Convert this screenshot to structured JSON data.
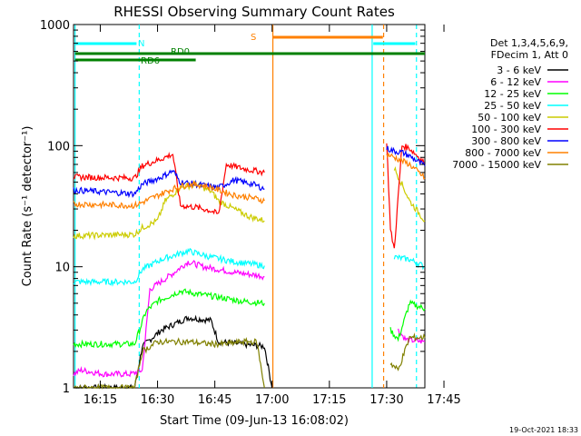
{
  "chart_data": {
    "type": "line",
    "title": "RHESSI Observing Summary Count Rates",
    "xlabel": "Start Time (09-Jun-13 16:08:02)",
    "ylabel": "Count Rate (s⁻¹ detector⁻¹)",
    "y_scale": "log",
    "ylim": [
      1,
      1000
    ],
    "xlim_minutes": [
      8,
      100
    ],
    "x_ticks": [
      "16:15",
      "16:30",
      "16:45",
      "17:00",
      "17:15",
      "17:30",
      "17:45"
    ],
    "y_ticks": [
      "1",
      "10",
      "100",
      "1000"
    ],
    "legend_header": [
      "Det 1,3,4,5,6,9,",
      "FDecim 1, Att 0"
    ],
    "series": [
      {
        "name": "3 - 6 keV",
        "color": "#000000",
        "segments": [
          [
            [
              8,
              1
            ],
            [
              24,
              1
            ],
            [
              26,
              2.2
            ],
            [
              31,
              3.0
            ],
            [
              38,
              3.8
            ],
            [
              44,
              3.6
            ],
            [
              46,
              2.4
            ],
            [
              58,
              2.2
            ],
            [
              60,
              1
            ]
          ]
        ]
      },
      {
        "name": "6 - 12 keV",
        "color": "#ff00ff",
        "segments": [
          [
            [
              8,
              1.3
            ],
            [
              10,
              1.4
            ],
            [
              16,
              1.3
            ],
            [
              23,
              1.3
            ],
            [
              26,
              1.4
            ],
            [
              28,
              6.5
            ],
            [
              34,
              8.8
            ],
            [
              38,
              11
            ],
            [
              42,
              10
            ],
            [
              46,
              9.5
            ],
            [
              50,
              9.0
            ],
            [
              56,
              8.5
            ],
            [
              58,
              8.3
            ]
          ],
          [
            [
              93,
              3.0
            ],
            [
              95,
              2.5
            ],
            [
              100,
              2.4
            ]
          ]
        ]
      },
      {
        "name": "12 - 25 keV",
        "color": "#00ff00",
        "segments": [
          [
            [
              8,
              2.3
            ],
            [
              24,
              2.3
            ],
            [
              27,
              4.3
            ],
            [
              30,
              5.2
            ],
            [
              36,
              6.3
            ],
            [
              40,
              6.0
            ],
            [
              46,
              5.6
            ],
            [
              52,
              5.2
            ],
            [
              58,
              5.0
            ]
          ],
          [
            [
              91,
              3.0
            ],
            [
              93,
              2.5
            ],
            [
              96,
              5.0
            ],
            [
              100,
              4.5
            ]
          ]
        ]
      },
      {
        "name": "25 - 50 keV",
        "color": "#00ffff",
        "segments": [
          [
            [
              8,
              7.5
            ],
            [
              24,
              7.5
            ],
            [
              26,
              9.5
            ],
            [
              31,
              11.5
            ],
            [
              38,
              13.5
            ],
            [
              44,
              12
            ],
            [
              50,
              11
            ],
            [
              58,
              10.2
            ]
          ],
          [
            [
              92,
              12
            ],
            [
              96,
              11.5
            ],
            [
              100,
              10
            ]
          ]
        ]
      },
      {
        "name": "50 - 100 keV",
        "color": "#cccc00",
        "segments": [
          [
            [
              8,
              18
            ],
            [
              24,
              18.5
            ],
            [
              26,
              21
            ],
            [
              30,
              24
            ],
            [
              32,
              35
            ],
            [
              36,
              45
            ],
            [
              40,
              48
            ],
            [
              44,
              42
            ],
            [
              46,
              35
            ],
            [
              50,
              30
            ],
            [
              54,
              26
            ],
            [
              58,
              24
            ]
          ],
          [
            [
              92,
              65
            ],
            [
              94,
              48
            ],
            [
              96,
              35
            ],
            [
              100,
              24
            ]
          ]
        ]
      },
      {
        "name": "100 - 300 keV",
        "color": "#ff0000",
        "segments": [
          [
            [
              8,
              55
            ],
            [
              24,
              54
            ],
            [
              26,
              68
            ],
            [
              31,
              78
            ],
            [
              34,
              85
            ],
            [
              36,
              32
            ],
            [
              40,
              31
            ],
            [
              44,
              29
            ],
            [
              46,
              27
            ],
            [
              48,
              70
            ],
            [
              52,
              65
            ],
            [
              58,
              60
            ]
          ],
          [
            [
              90,
              110
            ],
            [
              91,
              20
            ],
            [
              92,
              14
            ],
            [
              94,
              100
            ],
            [
              96,
              95
            ],
            [
              100,
              72
            ]
          ]
        ]
      },
      {
        "name": "300 - 800 keV",
        "color": "#0000ff",
        "segments": [
          [
            [
              8,
              43
            ],
            [
              24,
              40
            ],
            [
              26,
              48
            ],
            [
              31,
              55
            ],
            [
              34,
              62
            ],
            [
              36,
              50
            ],
            [
              40,
              48
            ],
            [
              44,
              46
            ],
            [
              46,
              45
            ],
            [
              50,
              52
            ],
            [
              55,
              48
            ],
            [
              58,
              44
            ]
          ],
          [
            [
              90,
              95
            ],
            [
              92,
              90
            ],
            [
              94,
              88
            ],
            [
              96,
              82
            ],
            [
              100,
              68
            ]
          ]
        ]
      },
      {
        "name": "800 - 7000 keV",
        "color": "#ff8000",
        "segments": [
          [
            [
              8,
              33
            ],
            [
              24,
              32
            ],
            [
              26,
              34
            ],
            [
              31,
              40
            ],
            [
              34,
              44
            ],
            [
              38,
              48
            ],
            [
              42,
              47
            ],
            [
              46,
              43
            ],
            [
              50,
              39
            ],
            [
              55,
              37
            ],
            [
              58,
              35
            ]
          ],
          [
            [
              90,
              85
            ],
            [
              92,
              80
            ],
            [
              94,
              75
            ],
            [
              96,
              70
            ],
            [
              100,
              54
            ]
          ]
        ]
      },
      {
        "name": "7000 - 15000 keV",
        "color": "#808000",
        "segments": [
          [
            [
              8,
              1
            ],
            [
              24,
              1
            ],
            [
              26,
              2.0
            ],
            [
              30,
              2.4
            ],
            [
              38,
              2.4
            ],
            [
              44,
              2.3
            ],
            [
              48,
              2.3
            ],
            [
              52,
              2.4
            ],
            [
              56,
              2.4
            ],
            [
              58,
              1
            ]
          ],
          [
            [
              91,
              1.6
            ],
            [
              93,
              1.4
            ],
            [
              96,
              2.6
            ],
            [
              100,
              2.6
            ]
          ]
        ]
      }
    ],
    "annotations": [
      {
        "label": "N",
        "color": "#00ffff"
      },
      {
        "label": "RD0",
        "color": "#008000"
      },
      {
        "label": "RD6",
        "color": "#008000"
      },
      {
        "label": "S",
        "color": "#ff8000"
      }
    ],
    "grid": false,
    "legend_position": "right"
  },
  "footer": {
    "date": "19-Oct-2021 18:33"
  }
}
